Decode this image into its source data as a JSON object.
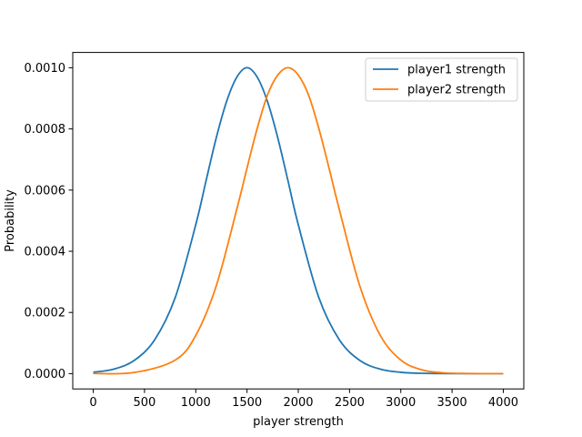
{
  "chart_data": {
    "type": "line",
    "title": "",
    "xlabel": "player strength",
    "ylabel": "Probability",
    "xlim": [
      -200,
      4200
    ],
    "ylim": [
      -5e-05,
      0.00105
    ],
    "grid": false,
    "legend_position": "top-right",
    "x_ticks": [
      {
        "value": 0,
        "label": "0"
      },
      {
        "value": 500,
        "label": "500"
      },
      {
        "value": 1000,
        "label": "1000"
      },
      {
        "value": 1500,
        "label": "1500"
      },
      {
        "value": 2000,
        "label": "2000"
      },
      {
        "value": 2500,
        "label": "2500"
      },
      {
        "value": 3000,
        "label": "3000"
      },
      {
        "value": 3500,
        "label": "3500"
      },
      {
        "value": 4000,
        "label": "4000"
      }
    ],
    "y_ticks": [
      {
        "value": 0.0,
        "label": "0.0000"
      },
      {
        "value": 0.0002,
        "label": "0.0002"
      },
      {
        "value": 0.0004,
        "label": "0.0004"
      },
      {
        "value": 0.0006,
        "label": "0.0006"
      },
      {
        "value": 0.0008,
        "label": "0.0008"
      },
      {
        "value": 0.001,
        "label": "0.0010"
      }
    ],
    "series": [
      {
        "name": "player1 strength",
        "color": "#1f77b4",
        "x": [
          0,
          200,
          400,
          600,
          800,
          1000,
          1100,
          1200,
          1300,
          1400,
          1500,
          1600,
          1700,
          1800,
          1900,
          2000,
          2200,
          2400,
          2600,
          2800,
          3000,
          3200,
          3500,
          4000
        ],
        "y": [
          4.4e-06,
          1.47e-05,
          4.32e-05,
          0.000111,
          0.000249,
          0.000487,
          0.00063,
          0.000771,
          0.000889,
          0.000969,
          0.001,
          0.000969,
          0.000889,
          0.000771,
          0.00063,
          0.000487,
          0.000249,
          0.000111,
          4.32e-05,
          1.47e-05,
          4.4e-06,
          1.1e-06,
          1e-07,
          0.0
        ]
      },
      {
        "name": "player2 strength",
        "color": "#ff7f0e",
        "x": [
          0,
          400,
          800,
          1000,
          1200,
          1400,
          1500,
          1600,
          1700,
          1800,
          1900,
          2000,
          2100,
          2200,
          2300,
          2400,
          2600,
          2800,
          3000,
          3200,
          3400,
          3600,
          4000
        ],
        "y": [
          3e-07,
          3.7e-06,
          4.44e-05,
          0.000125,
          0.000287,
          0.000537,
          0.000672,
          0.000802,
          0.000911,
          0.000976,
          0.001,
          0.000976,
          0.000911,
          0.000802,
          0.000672,
          0.000537,
          0.000287,
          0.000125,
          4.44e-05,
          1.28e-05,
          3e-06,
          6e-07,
          0.0
        ]
      }
    ]
  }
}
